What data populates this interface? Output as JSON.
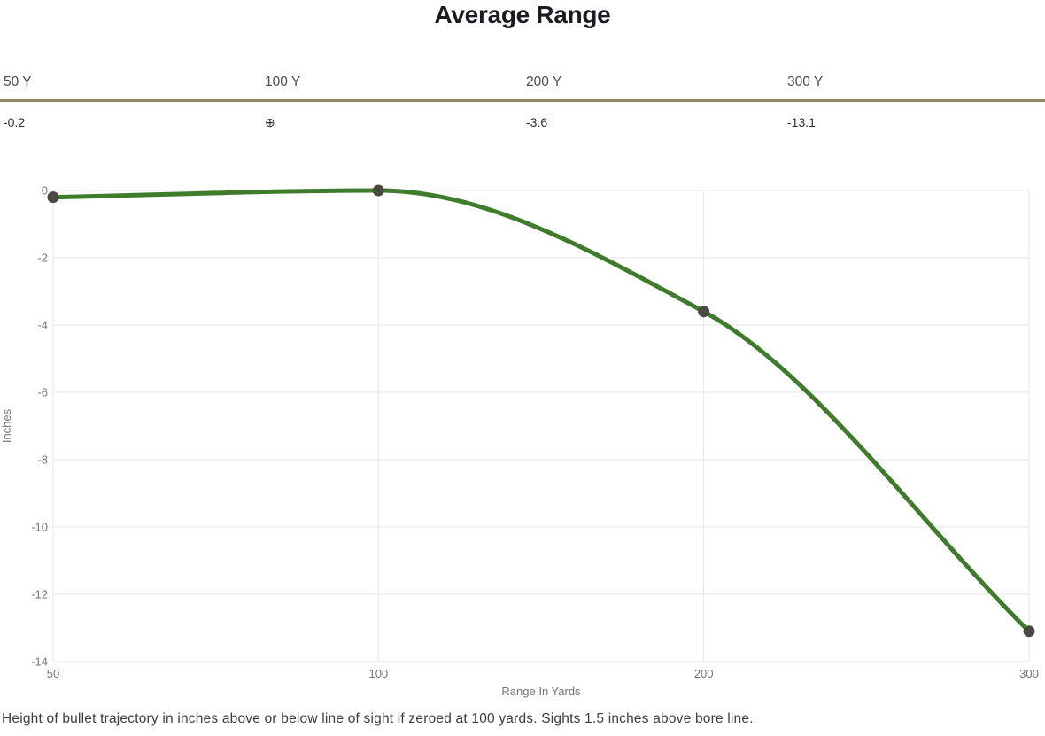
{
  "title": "Average Range",
  "range_table": {
    "columns": [
      {
        "label": "50 Y",
        "value": "-0.2"
      },
      {
        "label": "100 Y",
        "value": "⊕"
      },
      {
        "label": "200 Y",
        "value": "-3.6"
      },
      {
        "label": "300 Y",
        "value": "-13.1"
      }
    ]
  },
  "chart_data": {
    "type": "line",
    "title": "Average Range",
    "categories": [
      "50",
      "100",
      "200",
      "300"
    ],
    "x_values_yards": [
      50,
      100,
      200,
      300
    ],
    "series": [
      {
        "name": "Bullet trajectory height",
        "values": [
          -0.2,
          0,
          -3.6,
          -13.1
        ]
      }
    ],
    "xlabel": "Range In Yards",
    "ylabel": "Inches",
    "ylim": [
      -14,
      0
    ],
    "yticks": [
      0,
      -2,
      -4,
      -6,
      -8,
      -10,
      -12,
      -14
    ],
    "grid": true,
    "legend": "none",
    "x_axis_spacing": "equal-categorical",
    "curve": "smooth-monotone"
  },
  "colors": {
    "line": "#3e7c2c",
    "point": "#4a4a43",
    "divider": "#8c8767",
    "grid": "#e6e6e6",
    "tick_label": "#757575",
    "axis_title": "#757575",
    "title_text": "#1b1b22",
    "caption_text": "#3c3c3c"
  },
  "caption": "Height of bullet trajectory in inches above or below line of sight if zeroed at 100 yards. Sights 1.5 inches above bore line."
}
